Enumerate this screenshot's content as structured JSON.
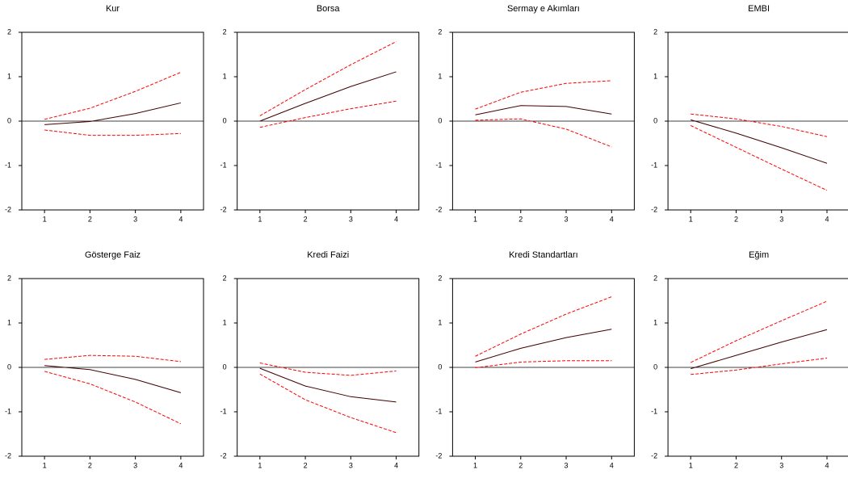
{
  "chart_data": [
    {
      "type": "line",
      "title": "Kur",
      "x": [
        1,
        2,
        3,
        4
      ],
      "xlim": [
        0.5,
        4.5
      ],
      "xticks": [
        1,
        2,
        3,
        4
      ],
      "ylim": [
        -2,
        2
      ],
      "yticks": [
        -2,
        -1,
        0,
        1,
        2
      ],
      "zero_line": true,
      "series": [
        {
          "color": "#400000",
          "dashed": false,
          "values": [
            -0.08,
            -0.01,
            0.17,
            0.41
          ]
        },
        {
          "color": "#ff0000",
          "dashed": true,
          "values": [
            0.04,
            0.29,
            0.67,
            1.1
          ]
        },
        {
          "color": "#ff0000",
          "dashed": true,
          "values": [
            -0.2,
            -0.32,
            -0.32,
            -0.28
          ]
        }
      ]
    },
    {
      "type": "line",
      "title": "Borsa",
      "x": [
        1,
        2,
        3,
        4
      ],
      "xlim": [
        0.5,
        4.5
      ],
      "xticks": [
        1,
        2,
        3,
        4
      ],
      "ylim": [
        -2,
        2
      ],
      "yticks": [
        -2,
        -1,
        0,
        1,
        2
      ],
      "zero_line": true,
      "series": [
        {
          "color": "#400000",
          "dashed": false,
          "values": [
            0.0,
            0.4,
            0.78,
            1.11
          ]
        },
        {
          "color": "#ff0000",
          "dashed": true,
          "values": [
            0.12,
            0.71,
            1.27,
            1.79
          ]
        },
        {
          "color": "#ff0000",
          "dashed": true,
          "values": [
            -0.14,
            0.08,
            0.28,
            0.45
          ]
        }
      ]
    },
    {
      "type": "line",
      "title": "Sermay e Akımları",
      "x": [
        1,
        2,
        3,
        4
      ],
      "xlim": [
        0.5,
        4.5
      ],
      "xticks": [
        1,
        2,
        3,
        4
      ],
      "ylim": [
        -2,
        2
      ],
      "yticks": [
        -2,
        -1,
        0,
        1,
        2
      ],
      "zero_line": true,
      "series": [
        {
          "color": "#400000",
          "dashed": false,
          "values": [
            0.14,
            0.35,
            0.33,
            0.16
          ]
        },
        {
          "color": "#ff0000",
          "dashed": true,
          "values": [
            0.27,
            0.65,
            0.85,
            0.91
          ]
        },
        {
          "color": "#ff0000",
          "dashed": true,
          "values": [
            0.02,
            0.05,
            -0.18,
            -0.58
          ]
        }
      ]
    },
    {
      "type": "line",
      "title": "EMBI",
      "x": [
        1,
        2,
        3,
        4
      ],
      "xlim": [
        0.5,
        4.5
      ],
      "xticks": [
        1,
        2,
        3,
        4
      ],
      "ylim": [
        -2,
        2
      ],
      "yticks": [
        -2,
        -1,
        0,
        1,
        2
      ],
      "zero_line": true,
      "series": [
        {
          "color": "#400000",
          "dashed": false,
          "values": [
            0.03,
            -0.27,
            -0.6,
            -0.95
          ]
        },
        {
          "color": "#ff0000",
          "dashed": true,
          "values": [
            0.16,
            0.05,
            -0.12,
            -0.35
          ]
        },
        {
          "color": "#ff0000",
          "dashed": true,
          "values": [
            -0.1,
            -0.59,
            -1.08,
            -1.56
          ]
        }
      ]
    },
    {
      "type": "line",
      "title": "Gösterge Faiz",
      "x": [
        1,
        2,
        3,
        4
      ],
      "xlim": [
        0.5,
        4.5
      ],
      "xticks": [
        1,
        2,
        3,
        4
      ],
      "ylim": [
        -2,
        2
      ],
      "yticks": [
        -2,
        -1,
        0,
        1,
        2
      ],
      "zero_line": true,
      "series": [
        {
          "color": "#400000",
          "dashed": false,
          "values": [
            0.04,
            -0.05,
            -0.27,
            -0.57
          ]
        },
        {
          "color": "#ff0000",
          "dashed": true,
          "values": [
            0.18,
            0.27,
            0.25,
            0.13
          ]
        },
        {
          "color": "#ff0000",
          "dashed": true,
          "values": [
            -0.09,
            -0.37,
            -0.78,
            -1.27
          ]
        }
      ]
    },
    {
      "type": "line",
      "title": "Kredi Faizi",
      "x": [
        1,
        2,
        3,
        4
      ],
      "xlim": [
        0.5,
        4.5
      ],
      "xticks": [
        1,
        2,
        3,
        4
      ],
      "ylim": [
        -2,
        2
      ],
      "yticks": [
        -2,
        -1,
        0,
        1,
        2
      ],
      "zero_line": true,
      "series": [
        {
          "color": "#400000",
          "dashed": false,
          "values": [
            -0.02,
            -0.42,
            -0.66,
            -0.78
          ]
        },
        {
          "color": "#ff0000",
          "dashed": true,
          "values": [
            0.1,
            -0.11,
            -0.18,
            -0.08
          ]
        },
        {
          "color": "#ff0000",
          "dashed": true,
          "values": [
            -0.15,
            -0.73,
            -1.13,
            -1.47
          ]
        }
      ]
    },
    {
      "type": "line",
      "title": "Kredi Standartları",
      "x": [
        1,
        2,
        3,
        4
      ],
      "xlim": [
        0.5,
        4.5
      ],
      "xticks": [
        1,
        2,
        3,
        4
      ],
      "ylim": [
        -2,
        2
      ],
      "yticks": [
        -2,
        -1,
        0,
        1,
        2
      ],
      "zero_line": true,
      "series": [
        {
          "color": "#400000",
          "dashed": false,
          "values": [
            0.12,
            0.43,
            0.67,
            0.86
          ]
        },
        {
          "color": "#ff0000",
          "dashed": true,
          "values": [
            0.25,
            0.75,
            1.2,
            1.59
          ]
        },
        {
          "color": "#ff0000",
          "dashed": true,
          "values": [
            -0.01,
            0.12,
            0.15,
            0.15
          ]
        }
      ]
    },
    {
      "type": "line",
      "title": "Eğim",
      "x": [
        1,
        2,
        3,
        4
      ],
      "xlim": [
        0.5,
        4.5
      ],
      "xticks": [
        1,
        2,
        3,
        4
      ],
      "ylim": [
        -2,
        2
      ],
      "yticks": [
        -2,
        -1,
        0,
        1,
        2
      ],
      "zero_line": true,
      "series": [
        {
          "color": "#400000",
          "dashed": false,
          "values": [
            -0.03,
            0.27,
            0.57,
            0.85
          ]
        },
        {
          "color": "#ff0000",
          "dashed": true,
          "values": [
            0.11,
            0.6,
            1.05,
            1.49
          ]
        },
        {
          "color": "#ff0000",
          "dashed": true,
          "values": [
            -0.16,
            -0.06,
            0.08,
            0.21
          ]
        }
      ]
    }
  ]
}
